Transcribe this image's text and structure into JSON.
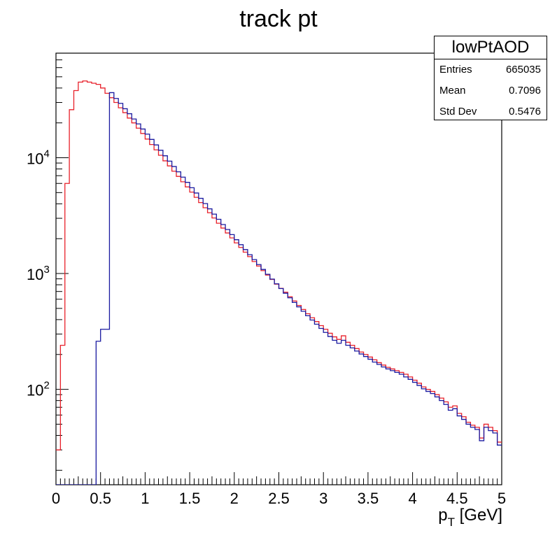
{
  "chart_data": {
    "type": "step-histogram",
    "title": "track pt",
    "xlabel_main": "p",
    "xlabel_sub": "T",
    "xlabel_unit": " [GeV]",
    "xlim": [
      0,
      5
    ],
    "ylim": [
      15,
      80000
    ],
    "yscale": "log",
    "grid": false,
    "legend": "top-right",
    "x_ticks": [
      "0",
      "0.5",
      "1",
      "1.5",
      "2",
      "2.5",
      "3",
      "3.5",
      "4",
      "4.5",
      "5"
    ],
    "y_ticks": [
      {
        "base": "10",
        "exp": "2",
        "value": 100
      },
      {
        "base": "10",
        "exp": "3",
        "value": 1000
      },
      {
        "base": "10",
        "exp": "4",
        "value": 10000
      }
    ],
    "bin_width": 0.05,
    "series": [
      {
        "color": "#e8202a",
        "values": [
          30,
          240,
          6000,
          26000,
          38000,
          45000,
          46000,
          45000,
          44000,
          43000,
          40000,
          36000,
          33000,
          30000,
          27000,
          24500,
          22000,
          20000,
          18000,
          16200,
          14500,
          13000,
          11700,
          10500,
          9400,
          8500,
          7650,
          6900,
          6200,
          5600,
          5050,
          4550,
          4100,
          3700,
          3350,
          3020,
          2720,
          2470,
          2240,
          2030,
          1840,
          1680,
          1530,
          1400,
          1270,
          1160,
          1060,
          970,
          890,
          810,
          745,
          690,
          630,
          580,
          530,
          490,
          450,
          415,
          385,
          355,
          330,
          305,
          284,
          270,
          290,
          255,
          240,
          225,
          210,
          200,
          190,
          180,
          170,
          162,
          155,
          150,
          145,
          140,
          135,
          128,
          120,
          113,
          105,
          100,
          96,
          90,
          84,
          78,
          70,
          72,
          62,
          58,
          52,
          49,
          47,
          38,
          50,
          47,
          44,
          35
        ]
      },
      {
        "color": "#1a1aa0",
        "values": [
          0,
          0,
          0,
          0,
          0,
          0,
          0,
          0,
          0,
          260,
          330,
          330,
          36500,
          32500,
          29500,
          26500,
          24000,
          21600,
          19600,
          17700,
          16000,
          14400,
          12900,
          11600,
          10400,
          9350,
          8400,
          7560,
          6800,
          6130,
          5510,
          4960,
          4460,
          4020,
          3620,
          3260,
          2940,
          2650,
          2400,
          2170,
          1960,
          1775,
          1610,
          1455,
          1320,
          1195,
          1085,
          985,
          895,
          815,
          742,
          676,
          617,
          563,
          515,
          472,
          432,
          397,
          365,
          336,
          310,
          286,
          265,
          250,
          265,
          240,
          228,
          214,
          202,
          192,
          182,
          172,
          164,
          156,
          150,
          145,
          140,
          135,
          128,
          122,
          115,
          108,
          101,
          96,
          92,
          86,
          80,
          74,
          66,
          68,
          59,
          55,
          50,
          47,
          45,
          36,
          47,
          44,
          42,
          33
        ]
      }
    ]
  },
  "stats": {
    "title": "lowPtAOD",
    "rows": [
      {
        "key": "Entries",
        "value": "665035"
      },
      {
        "key": "Mean",
        "value": "0.7096"
      },
      {
        "key": "Std Dev",
        "value": "0.5476"
      }
    ]
  }
}
